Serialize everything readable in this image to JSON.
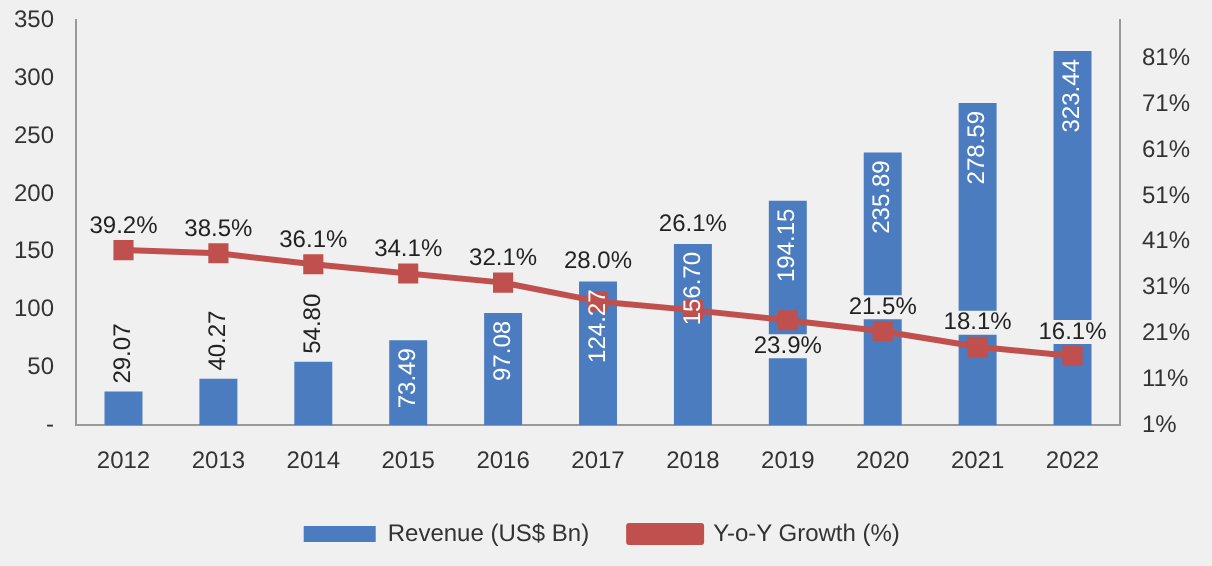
{
  "chart_data": {
    "type": "bar",
    "categories": [
      "2012",
      "2013",
      "2014",
      "2015",
      "2016",
      "2017",
      "2018",
      "2019",
      "2020",
      "2021",
      "2022"
    ],
    "series": [
      {
        "name": "Revenue (US$ Bn)",
        "color": "#4a7cbf",
        "values": [
          29.07,
          40.27,
          54.8,
          73.49,
          97.08,
          124.27,
          156.7,
          194.15,
          235.89,
          278.59,
          323.44
        ],
        "value_labels": [
          "29.07",
          "40.27",
          "54.80",
          "73.49",
          "97.08",
          "124.27",
          "156.70",
          "194.15",
          "235.89",
          "278.59",
          "323.44"
        ]
      },
      {
        "name": "Y-o-Y Growth (%)",
        "type": "line",
        "axis": "y2",
        "color": "#c0504d",
        "marker": "square",
        "values": [
          39.2,
          38.5,
          36.1,
          34.1,
          32.1,
          28.0,
          26.1,
          23.9,
          21.5,
          18.1,
          16.1
        ],
        "value_labels": [
          "39.2%",
          "38.5%",
          "36.1%",
          "34.1%",
          "32.1%",
          "28.0%",
          "26.1%",
          "23.9%",
          "21.5%",
          "18.1%",
          "16.1%"
        ]
      }
    ],
    "ylim": [
      0,
      350
    ],
    "yticks": [
      {
        "value": 0,
        "label": "-"
      },
      50,
      100,
      150,
      200,
      250,
      300,
      350
    ],
    "y2lim": [
      1,
      89.3
    ],
    "y2ticks": [
      {
        "value": 1,
        "label": "1%"
      },
      {
        "value": 11,
        "label": "11%"
      },
      {
        "value": 21,
        "label": "21%"
      },
      {
        "value": 31,
        "label": "31%"
      },
      {
        "value": 41,
        "label": "41%"
      },
      {
        "value": 51,
        "label": "51%"
      },
      {
        "value": 61,
        "label": "61%"
      },
      {
        "value": 71,
        "label": "71%"
      },
      {
        "value": 81,
        "label": "81%"
      }
    ],
    "grid": false,
    "legend": "bottom"
  }
}
